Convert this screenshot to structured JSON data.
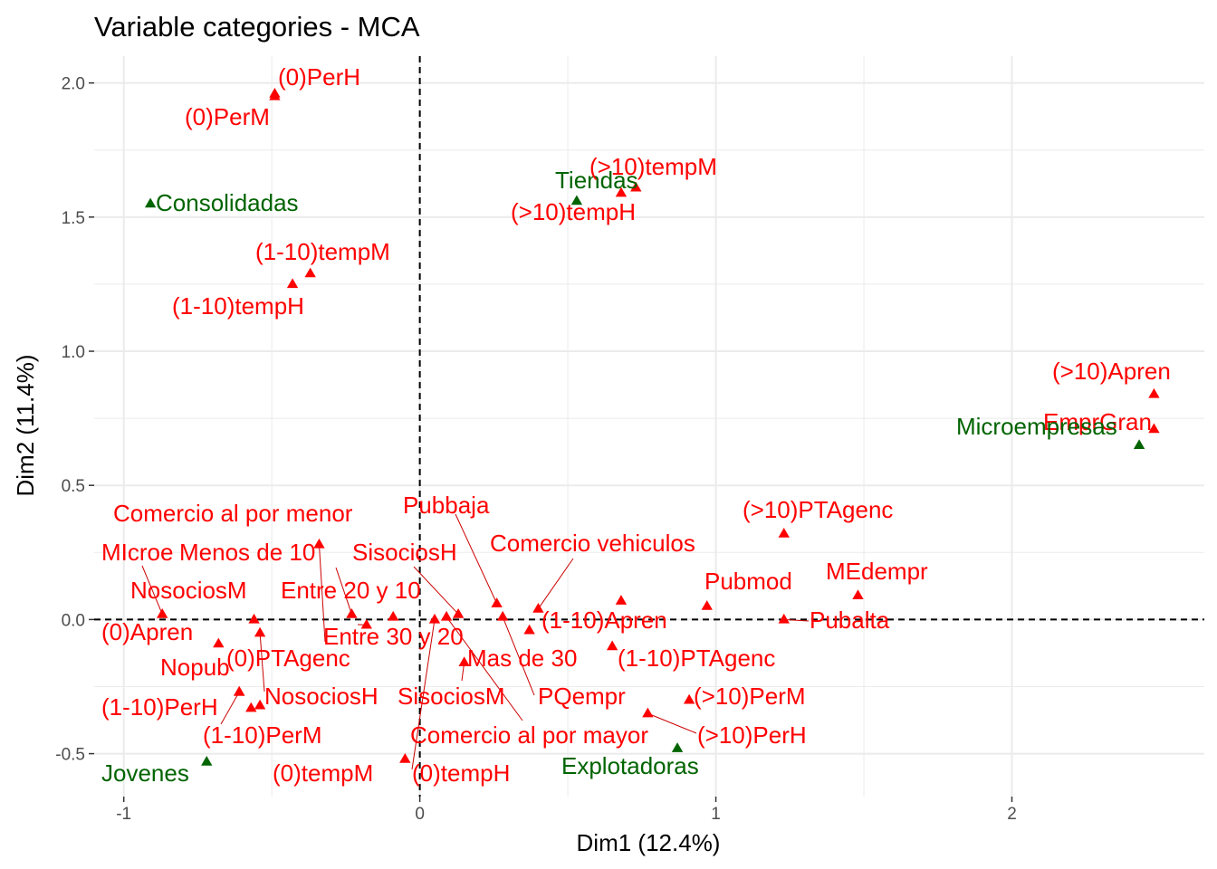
{
  "chart_data": {
    "type": "scatter",
    "title": "Variable categories - MCA",
    "xlabel": "Dim1 (12.4%)",
    "ylabel": "Dim2 (11.4%)",
    "xlim": [
      -1.1,
      2.65
    ],
    "ylim": [
      -0.66,
      2.1
    ],
    "x_ticks": [
      -1,
      0,
      1,
      2
    ],
    "y_ticks": [
      -0.5,
      0.0,
      0.5,
      1.0,
      1.5,
      2.0
    ],
    "x_tick_labels": [
      "-1",
      "0",
      "1",
      "2"
    ],
    "y_tick_labels": [
      "-0.5",
      "0.0",
      "0.5",
      "1.0",
      "1.5",
      "2.0"
    ],
    "grid": true,
    "reference_lines": {
      "x": 0,
      "y": 0,
      "style": "dashed"
    },
    "colors": {
      "variable": "#ff0000",
      "supplementary": "#006400",
      "grid": "#ebebeb",
      "segment": "#cc0000"
    },
    "groups": [
      "variable",
      "supplementary"
    ],
    "points": [
      {
        "label": "(0)PerH",
        "x": -0.49,
        "y": 1.96,
        "group": "variable"
      },
      {
        "label": "(0)PerM",
        "x": -0.49,
        "y": 1.95,
        "group": "variable"
      },
      {
        "label": "Consolidadas",
        "x": -0.91,
        "y": 1.55,
        "group": "supplementary"
      },
      {
        "label": "(1-10)tempM",
        "x": -0.37,
        "y": 1.29,
        "group": "variable"
      },
      {
        "label": "(1-10)tempH",
        "x": -0.43,
        "y": 1.25,
        "group": "variable"
      },
      {
        "label": "Tiendas",
        "x": 0.53,
        "y": 1.56,
        "group": "supplementary"
      },
      {
        "label": "(>10)tempM",
        "x": 0.73,
        "y": 1.61,
        "group": "variable"
      },
      {
        "label": "(>10)tempH",
        "x": 0.68,
        "y": 1.59,
        "group": "variable"
      },
      {
        "label": "(>10)Apren",
        "x": 2.48,
        "y": 0.84,
        "group": "variable"
      },
      {
        "label": "EmprGran",
        "x": 2.48,
        "y": 0.71,
        "group": "variable"
      },
      {
        "label": "Microempresas",
        "x": 2.43,
        "y": 0.65,
        "group": "supplementary"
      },
      {
        "label": "(>10)PTAgenc",
        "x": 1.23,
        "y": 0.32,
        "group": "variable"
      },
      {
        "label": "MEdempr",
        "x": 1.48,
        "y": 0.09,
        "group": "variable"
      },
      {
        "label": "Pubmod",
        "x": 0.97,
        "y": 0.05,
        "group": "variable"
      },
      {
        "label": "Pubalta",
        "x": 1.23,
        "y": 0.0,
        "group": "variable"
      },
      {
        "label": "Comercio al por menor",
        "x": -0.34,
        "y": 0.28,
        "group": "variable"
      },
      {
        "label": "MIcroe",
        "x": -0.87,
        "y": 0.02,
        "group": "variable"
      },
      {
        "label": "Menos de 10",
        "x": -0.23,
        "y": 0.02,
        "group": "variable"
      },
      {
        "label": "NosociosM",
        "x": -0.56,
        "y": 0.0,
        "group": "variable"
      },
      {
        "label": "Entre 20 y 10",
        "x": -0.09,
        "y": 0.01,
        "group": "variable"
      },
      {
        "label": "Pubbaja",
        "x": 0.26,
        "y": 0.06,
        "group": "variable"
      },
      {
        "label": "SisociosH",
        "x": 0.13,
        "y": 0.02,
        "group": "variable"
      },
      {
        "label": "Comercio vehiculos",
        "x": 0.4,
        "y": 0.04,
        "group": "variable"
      },
      {
        "label": "(1-10)Apren",
        "x": 0.68,
        "y": 0.07,
        "group": "variable"
      },
      {
        "label": "Entre 30 y 20",
        "x": -0.18,
        "y": -0.02,
        "group": "variable"
      },
      {
        "label": "(0)Apren",
        "x": -0.68,
        "y": -0.09,
        "group": "variable"
      },
      {
        "label": "(0)PTAgenc",
        "x": -0.54,
        "y": -0.05,
        "group": "variable"
      },
      {
        "label": "Mas de 30",
        "x": 0.37,
        "y": -0.04,
        "group": "variable"
      },
      {
        "label": "(1-10)PTAgenc",
        "x": 0.65,
        "y": -0.1,
        "group": "variable"
      },
      {
        "label": "Nopub",
        "x": -0.61,
        "y": -0.27,
        "group": "variable"
      },
      {
        "label": "NosociosH",
        "x": -0.54,
        "y": -0.32,
        "group": "variable"
      },
      {
        "label": "SisociosM",
        "x": 0.15,
        "y": -0.16,
        "group": "variable"
      },
      {
        "label": "PQempr",
        "x": 0.28,
        "y": 0.01,
        "group": "variable"
      },
      {
        "label": "(1-10)PerH",
        "x": -0.57,
        "y": -0.33,
        "group": "variable"
      },
      {
        "label": "(>10)PerM",
        "x": 0.91,
        "y": -0.3,
        "group": "variable"
      },
      {
        "label": "(1-10)PerM",
        "x": -0.61,
        "y": -0.27,
        "group": "variable"
      },
      {
        "label": "Comercio al por mayor",
        "x": 0.09,
        "y": 0.01,
        "group": "variable"
      },
      {
        "label": "(>10)PerH",
        "x": 0.77,
        "y": -0.35,
        "group": "variable"
      },
      {
        "label": "Explotadoras",
        "x": 0.87,
        "y": -0.48,
        "group": "supplementary"
      },
      {
        "label": "Jovenes",
        "x": -0.72,
        "y": -0.53,
        "group": "supplementary"
      },
      {
        "label": "(0)tempM",
        "x": -0.05,
        "y": -0.52,
        "group": "variable"
      },
      {
        "label": "(0)tempH",
        "x": 0.05,
        "y": 0.0,
        "group": "variable"
      }
    ]
  }
}
